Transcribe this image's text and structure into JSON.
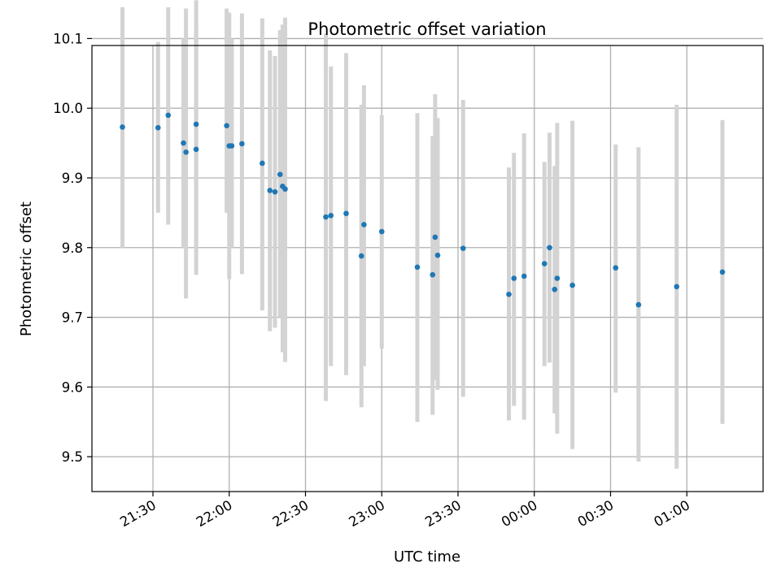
{
  "chart_data": {
    "type": "scatter",
    "title": "Photometric offset variation",
    "xlabel": "UTC time",
    "ylabel": "Photometric offset",
    "x_tick_labels": [
      "21:30",
      "22:00",
      "22:30",
      "23:00",
      "23:30",
      "00:00",
      "00:30",
      "01:00"
    ],
    "y_tick_labels": [
      "9.5",
      "9.6",
      "9.7",
      "9.8",
      "9.9",
      "10.0",
      "10.1"
    ],
    "xlim": [
      "21:06",
      "01:30"
    ],
    "ylim": [
      9.45,
      10.09
    ],
    "grid": true,
    "colors": {
      "points": "#1f77b4",
      "error_bars": "#d3d3d3",
      "grid": "#b0b0b0"
    },
    "series": [
      {
        "points": [
          {
            "x": "21:18",
            "y": 9.973,
            "lo": 9.8,
            "hi": 10.145
          },
          {
            "x": "21:32",
            "y": 9.972,
            "lo": 9.85,
            "hi": 10.095
          },
          {
            "x": "21:36",
            "y": 9.99,
            "lo": 9.833,
            "hi": 10.145
          },
          {
            "x": "21:42",
            "y": 9.95,
            "lo": 9.8,
            "hi": 10.1
          },
          {
            "x": "21:43",
            "y": 9.937,
            "lo": 9.727,
            "hi": 10.143
          },
          {
            "x": "21:47",
            "y": 9.977,
            "lo": 9.8,
            "hi": 10.12
          },
          {
            "x": "21:47",
            "y": 9.941,
            "lo": 9.761,
            "hi": 10.155
          },
          {
            "x": "21:59",
            "y": 9.975,
            "lo": 9.85,
            "hi": 10.143
          },
          {
            "x": "22:00",
            "y": 9.946,
            "lo": 9.755,
            "hi": 10.137
          },
          {
            "x": "22:01",
            "y": 9.946,
            "lo": 9.8,
            "hi": 10.1
          },
          {
            "x": "22:05",
            "y": 9.949,
            "lo": 9.762,
            "hi": 10.136
          },
          {
            "x": "22:13",
            "y": 9.921,
            "lo": 9.71,
            "hi": 10.129
          },
          {
            "x": "22:16",
            "y": 9.882,
            "lo": 9.68,
            "hi": 10.083
          },
          {
            "x": "22:18",
            "y": 9.88,
            "lo": 9.685,
            "hi": 10.075
          },
          {
            "x": "22:20",
            "y": 9.905,
            "lo": 9.7,
            "hi": 10.112
          },
          {
            "x": "22:21",
            "y": 9.888,
            "lo": 9.65,
            "hi": 10.12
          },
          {
            "x": "22:22",
            "y": 9.884,
            "lo": 9.636,
            "hi": 10.13
          },
          {
            "x": "22:38",
            "y": 9.844,
            "lo": 9.58,
            "hi": 10.107
          },
          {
            "x": "22:40",
            "y": 9.846,
            "lo": 9.63,
            "hi": 10.06
          },
          {
            "x": "22:46",
            "y": 9.849,
            "lo": 9.617,
            "hi": 10.079
          },
          {
            "x": "22:52",
            "y": 9.788,
            "lo": 9.571,
            "hi": 10.005
          },
          {
            "x": "22:53",
            "y": 9.833,
            "lo": 9.63,
            "hi": 10.033
          },
          {
            "x": "23:00",
            "y": 9.823,
            "lo": 9.655,
            "hi": 9.99
          },
          {
            "x": "23:14",
            "y": 9.772,
            "lo": 9.55,
            "hi": 9.993
          },
          {
            "x": "23:20",
            "y": 9.761,
            "lo": 9.56,
            "hi": 9.96
          },
          {
            "x": "23:21",
            "y": 9.815,
            "lo": 9.61,
            "hi": 10.02
          },
          {
            "x": "23:22",
            "y": 9.789,
            "lo": 9.596,
            "hi": 9.986
          },
          {
            "x": "23:32",
            "y": 9.799,
            "lo": 9.586,
            "hi": 10.012
          },
          {
            "x": "23:50",
            "y": 9.733,
            "lo": 9.552,
            "hi": 9.915
          },
          {
            "x": "23:52",
            "y": 9.756,
            "lo": 9.573,
            "hi": 9.936
          },
          {
            "x": "23:56",
            "y": 9.759,
            "lo": 9.553,
            "hi": 9.964
          },
          {
            "x": "00:04",
            "y": 9.777,
            "lo": 9.63,
            "hi": 9.923
          },
          {
            "x": "00:06",
            "y": 9.8,
            "lo": 9.635,
            "hi": 9.965
          },
          {
            "x": "00:08",
            "y": 9.74,
            "lo": 9.562,
            "hi": 9.917
          },
          {
            "x": "00:09",
            "y": 9.756,
            "lo": 9.533,
            "hi": 9.979
          },
          {
            "x": "00:15",
            "y": 9.746,
            "lo": 9.511,
            "hi": 9.982
          },
          {
            "x": "00:32",
            "y": 9.771,
            "lo": 9.592,
            "hi": 9.948
          },
          {
            "x": "00:41",
            "y": 9.718,
            "lo": 9.493,
            "hi": 9.944
          },
          {
            "x": "00:56",
            "y": 9.744,
            "lo": 9.483,
            "hi": 10.005
          },
          {
            "x": "01:14",
            "y": 9.765,
            "lo": 9.547,
            "hi": 9.983
          }
        ]
      }
    ]
  }
}
